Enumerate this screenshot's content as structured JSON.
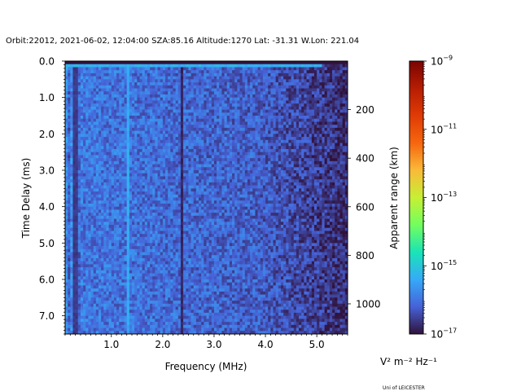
{
  "chart_data": {
    "type": "heatmap",
    "title": "Orbit:22012, 2021-06-02, 12:04:00 SZA:85.16 Altitude:1270 Lat: -31.31 W.Lon: 221.04",
    "xlabel": "Frequency (MHz)",
    "ylabel": "Time Delay (ms)",
    "y2label": "Apparent range (km)",
    "xlim": [
      0.1,
      5.6
    ],
    "ylim": [
      7.5,
      0.0
    ],
    "x_ticks": [
      1.0,
      2.0,
      3.0,
      4.0,
      5.0
    ],
    "x_tick_labels": [
      "1.0",
      "2.0",
      "3.0",
      "4.0",
      "5.0"
    ],
    "y_ticks": [
      0.0,
      1.0,
      2.0,
      3.0,
      4.0,
      5.0,
      6.0,
      7.0
    ],
    "y_tick_labels": [
      "0.0",
      "1.0",
      "2.0",
      "3.0",
      "4.0",
      "5.0",
      "6.0",
      "7.0"
    ],
    "y2_ticks_km": [
      200,
      400,
      600,
      800,
      1000
    ],
    "y2_tick_labels": [
      "200",
      "400",
      "600",
      "800",
      "1000"
    ],
    "km_per_ms": 149.896,
    "colorbar": {
      "scale": "log",
      "colormap": "turbo",
      "vmin_exp": -17,
      "vmax_exp": -9,
      "tick_exps": [
        -17,
        -15,
        -13,
        -11,
        -9
      ],
      "tick_labels": [
        "10",
        "10",
        "10",
        "10",
        "10"
      ],
      "tick_exp_labels": [
        "−17",
        "−15",
        "−13",
        "−11",
        "−9"
      ],
      "unit_label": "V² m⁻² Hz⁻¹"
    },
    "grid": false,
    "features": [
      {
        "description": "bright strip",
        "time_ms": 0.12,
        "freq_range_mhz": [
          0.1,
          5.1
        ],
        "log_value": -15.3
      },
      {
        "description": "dark vertical line",
        "freq_mhz": 2.38,
        "log_value": -16.9
      },
      {
        "description": "dark vertical line",
        "freq_mhz": 0.3,
        "log_value": -16.7
      },
      {
        "description": "bright vertical line",
        "freq_mhz": 1.33,
        "log_value": -15.4
      }
    ]
  },
  "footer": {
    "credit": "Uni of LEICESTER"
  }
}
